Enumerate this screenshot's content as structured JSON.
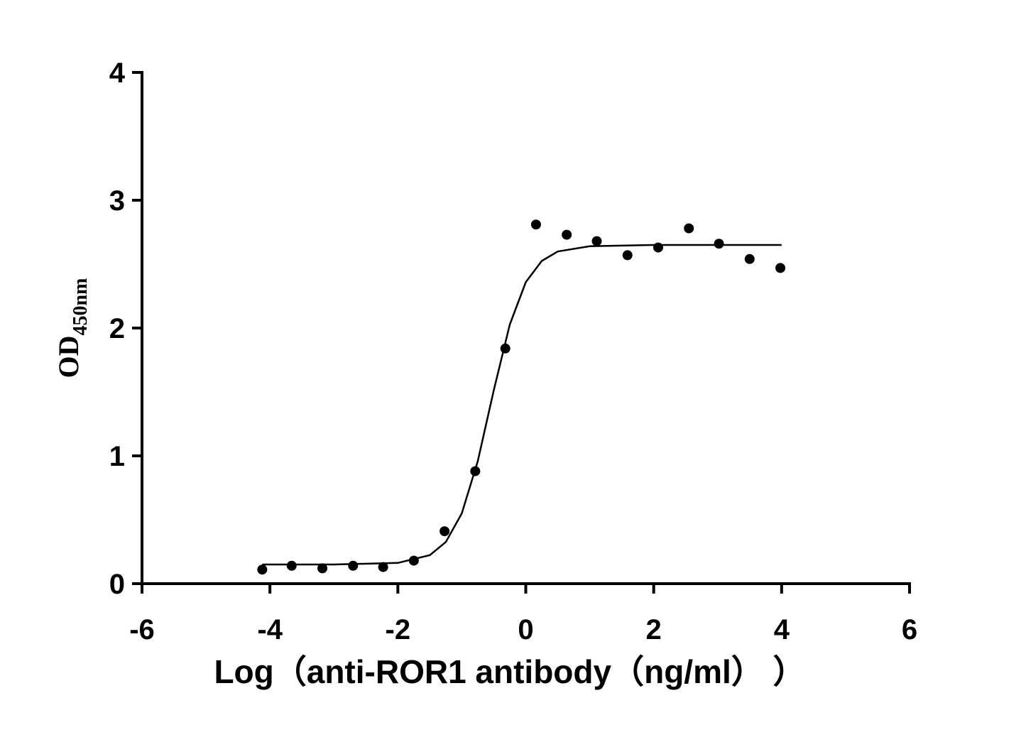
{
  "chart_data": {
    "type": "scatter",
    "xlabel": "Log（anti-ROR1 antibody（ng/ml）  ）",
    "ylabel": {
      "main": "OD",
      "sub": "450nm"
    },
    "x": [
      -4.12,
      -3.66,
      -3.18,
      -2.7,
      -2.23,
      -1.75,
      -1.27,
      -0.79,
      -0.32,
      0.16,
      0.64,
      1.11,
      1.59,
      2.07,
      2.55,
      3.02,
      3.5,
      3.98
    ],
    "values": [
      0.11,
      0.14,
      0.12,
      0.14,
      0.13,
      0.18,
      0.41,
      0.88,
      1.84,
      2.81,
      2.73,
      2.68,
      2.57,
      2.63,
      2.78,
      2.66,
      2.54,
      2.47
    ],
    "color": "#000000",
    "fit": {
      "x": [
        -4.12,
        -3,
        -2,
        -1.5,
        -1.25,
        -1,
        -0.75,
        -0.5,
        -0.25,
        0,
        0.25,
        0.5,
        1,
        2,
        3,
        4
      ],
      "values": [
        0.15,
        0.15,
        0.162,
        0.223,
        0.326,
        0.55,
        0.959,
        1.515,
        2.028,
        2.359,
        2.525,
        2.599,
        2.64,
        2.65,
        2.65,
        2.65
      ]
    },
    "xlim": [
      -6,
      6
    ],
    "xticks": [
      -6,
      -4,
      -2,
      0,
      2,
      4,
      6
    ],
    "ylim": [
      0,
      4
    ],
    "yticks": [
      0,
      1,
      2,
      3,
      4
    ]
  }
}
